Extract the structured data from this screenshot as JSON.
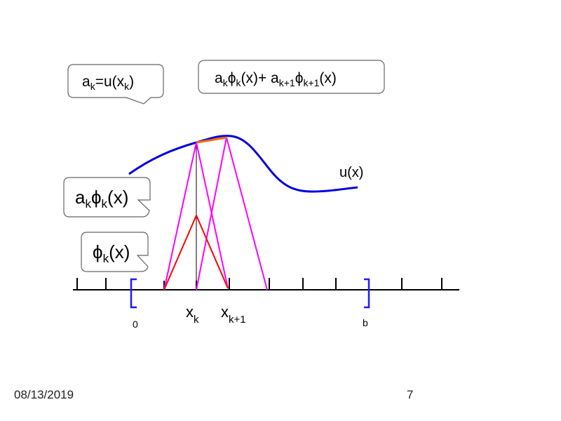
{
  "callouts": {
    "coefficient": {
      "a": "a",
      "sub": "k",
      "eq": "=u(x",
      "sub2": "k",
      "close": ")"
    },
    "combination": {
      "a1": "a",
      "s1": "k",
      "phi1": "ϕ",
      "s2": "k",
      "mid": "(x)+ a",
      "s3": "k+1",
      "phi2": "ϕ",
      "s4": "k+1",
      "end": "(x)"
    },
    "scaled_basis": {
      "a": "a",
      "s1": "k",
      "phi": "ϕ",
      "s2": "k",
      "end": "(x)"
    },
    "basis": {
      "phi": "ϕ",
      "s": "k",
      "end": "(x)"
    }
  },
  "curve_label": "u(x)",
  "axis_labels": {
    "xk": {
      "x": "x",
      "sub": "k"
    },
    "xk1": {
      "x": "x",
      "sub": "k+1"
    },
    "left_end": "0",
    "right_end": "b"
  },
  "colors": {
    "curve": "#0000dd",
    "hat": "#ff00ff",
    "basis": "#ff0000",
    "interp": "#ff6600",
    "bracket": "#1a1aff"
  },
  "footer": {
    "date": "08/13/2019",
    "page": "7"
  }
}
